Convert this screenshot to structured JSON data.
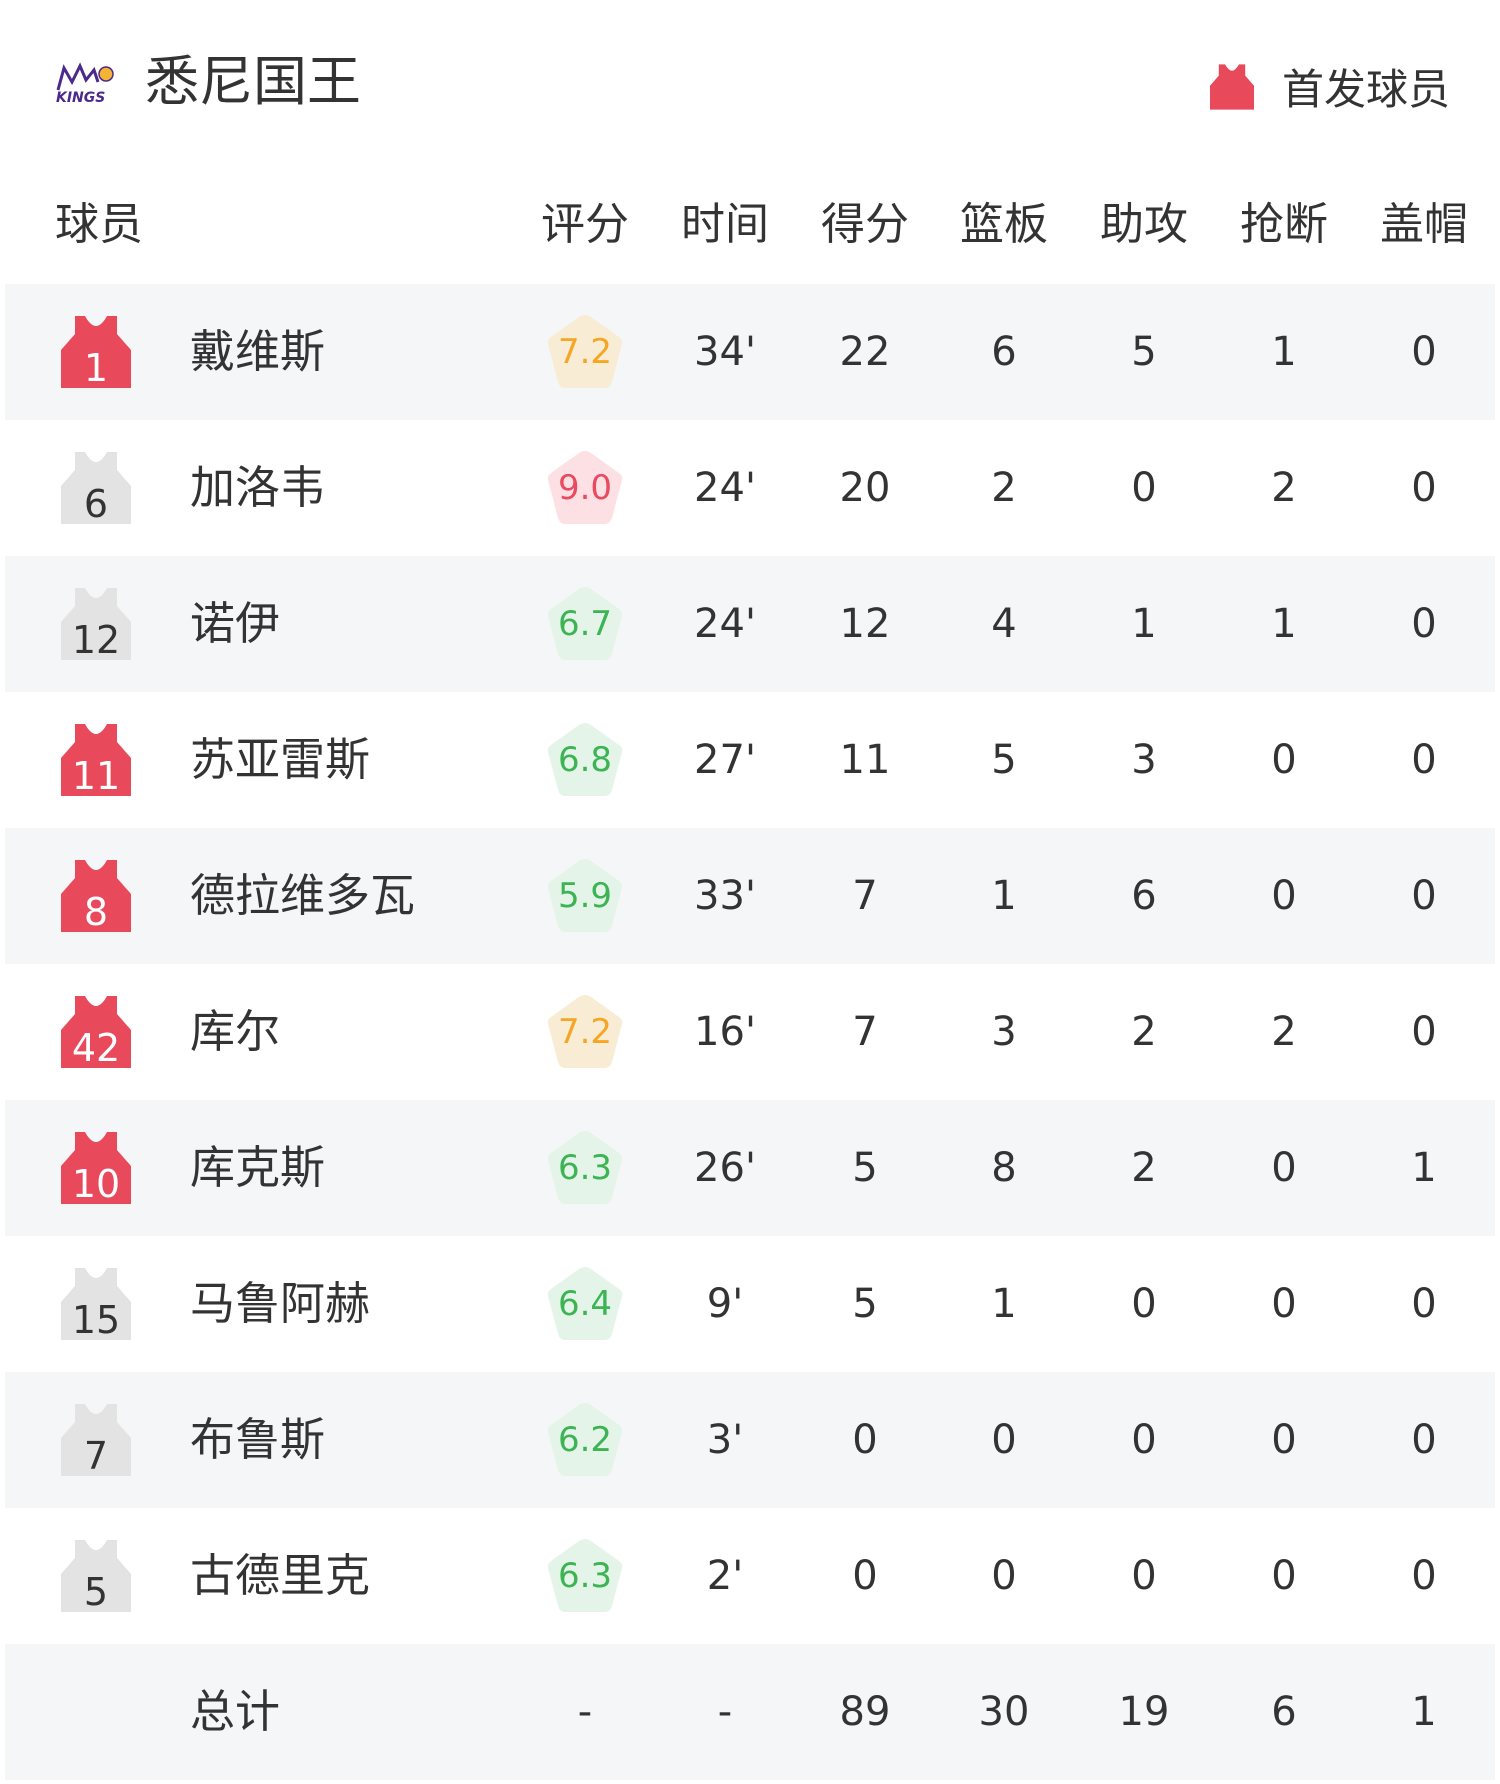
{
  "team": {
    "name": "悉尼国王",
    "logo_text": "SYDNEY KINGS"
  },
  "legend": {
    "label": "首发球员",
    "color": "#e84a5c"
  },
  "columns": [
    "球员",
    "评分",
    "时间",
    "得分",
    "篮板",
    "助攻",
    "抢断",
    "盖帽"
  ],
  "colors": {
    "starter": "#e84a5c",
    "bench": "#e3e3e3",
    "rating_orange": "#f5a623",
    "rating_orange_bg": "#f8ecd4",
    "rating_red": "#e84a5f",
    "rating_red_bg": "#fde0e4",
    "rating_green": "#3cb454",
    "rating_green_bg": "#e5f4e9"
  },
  "players": [
    {
      "number": "1",
      "name": "戴维斯",
      "starter": true,
      "rating": "7.2",
      "rating_level": "orange",
      "min": "34'",
      "pts": "22",
      "reb": "6",
      "ast": "5",
      "stl": "1",
      "blk": "0"
    },
    {
      "number": "6",
      "name": "加洛韦",
      "starter": false,
      "rating": "9.0",
      "rating_level": "red",
      "min": "24'",
      "pts": "20",
      "reb": "2",
      "ast": "0",
      "stl": "2",
      "blk": "0"
    },
    {
      "number": "12",
      "name": "诺伊",
      "starter": false,
      "rating": "6.7",
      "rating_level": "green",
      "min": "24'",
      "pts": "12",
      "reb": "4",
      "ast": "1",
      "stl": "1",
      "blk": "0"
    },
    {
      "number": "11",
      "name": "苏亚雷斯",
      "starter": true,
      "rating": "6.8",
      "rating_level": "green",
      "min": "27'",
      "pts": "11",
      "reb": "5",
      "ast": "3",
      "stl": "0",
      "blk": "0"
    },
    {
      "number": "8",
      "name": "德拉维多瓦",
      "starter": true,
      "rating": "5.9",
      "rating_level": "green",
      "min": "33'",
      "pts": "7",
      "reb": "1",
      "ast": "6",
      "stl": "0",
      "blk": "0"
    },
    {
      "number": "42",
      "name": "库尔",
      "starter": true,
      "rating": "7.2",
      "rating_level": "orange",
      "min": "16'",
      "pts": "7",
      "reb": "3",
      "ast": "2",
      "stl": "2",
      "blk": "0"
    },
    {
      "number": "10",
      "name": "库克斯",
      "starter": true,
      "rating": "6.3",
      "rating_level": "green",
      "min": "26'",
      "pts": "5",
      "reb": "8",
      "ast": "2",
      "stl": "0",
      "blk": "1"
    },
    {
      "number": "15",
      "name": "马鲁阿赫",
      "starter": false,
      "rating": "6.4",
      "rating_level": "green",
      "min": "9'",
      "pts": "5",
      "reb": "1",
      "ast": "0",
      "stl": "0",
      "blk": "0"
    },
    {
      "number": "7",
      "name": "布鲁斯",
      "starter": false,
      "rating": "6.2",
      "rating_level": "green",
      "min": "3'",
      "pts": "0",
      "reb": "0",
      "ast": "0",
      "stl": "0",
      "blk": "0"
    },
    {
      "number": "5",
      "name": "古德里克",
      "starter": false,
      "rating": "6.3",
      "rating_level": "green",
      "min": "2'",
      "pts": "0",
      "reb": "0",
      "ast": "0",
      "stl": "0",
      "blk": "0"
    }
  ],
  "total": {
    "label": "总计",
    "rating": "-",
    "min": "-",
    "pts": "89",
    "reb": "30",
    "ast": "19",
    "stl": "6",
    "blk": "1"
  }
}
